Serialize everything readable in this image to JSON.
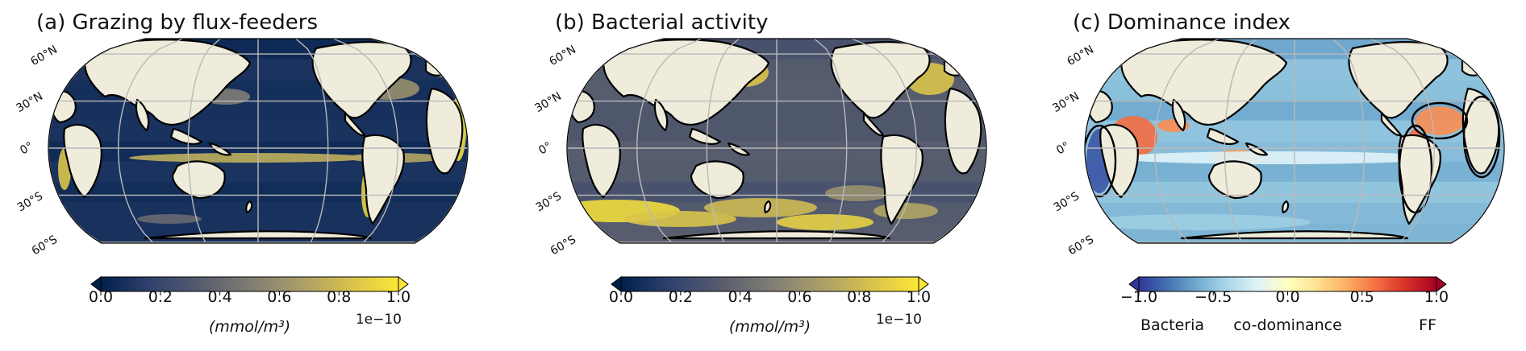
{
  "chart_data": [
    {
      "type": "heatmap",
      "id": "a",
      "title": "(a) Grazing by flux-feeders",
      "projection": "robinson world map",
      "lat_labels": [
        "60°N",
        "30°N",
        "0°",
        "30°S",
        "60°S"
      ],
      "colormap": "cividis",
      "colormap_stops": [
        "#00204c",
        "#30426d",
        "#575c6e",
        "#7f7c75",
        "#a89d6a",
        "#d6c04d",
        "#fde737"
      ],
      "colorbar": {
        "ticks": [
          "0.0",
          "0.2",
          "0.4",
          "0.6",
          "0.8",
          "1.0"
        ],
        "range": [
          0.0,
          1.0
        ],
        "scale_label": "1e−10",
        "units_label": "(mmol/m³)",
        "extend": "both"
      },
      "pattern": "low (dark blue) over most ocean; high (yellow) along coastal upwelling regions, equatorial Atlantic/Pacific and northern coasts"
    },
    {
      "type": "heatmap",
      "id": "b",
      "title": "(b) Bacterial activity",
      "projection": "robinson world map",
      "lat_labels": [
        "60°N",
        "30°N",
        "0°",
        "30°S",
        "60°S"
      ],
      "colormap": "cividis",
      "colormap_stops": [
        "#00204c",
        "#30426d",
        "#575c6e",
        "#7f7c75",
        "#a89d6a",
        "#d6c04d",
        "#fde737"
      ],
      "colorbar": {
        "ticks": [
          "0.0",
          "0.2",
          "0.4",
          "0.6",
          "0.8",
          "1.0"
        ],
        "range": [
          0.0,
          1.0
        ],
        "scale_label": "1e−10",
        "units_label": "(mmol/m³)",
        "extend": "both"
      },
      "pattern": "moderate grey over most ocean; high (yellow) bands in the Southern Ocean and North Pacific/Atlantic western boundary currents"
    },
    {
      "type": "heatmap",
      "id": "c",
      "title": "(c) Dominance index",
      "projection": "robinson world map",
      "lat_labels": [
        "60°N",
        "30°N",
        "0°",
        "30°S",
        "60°S"
      ],
      "colormap": "RdYlBu_r",
      "colormap_stops": [
        "#313695",
        "#4575b4",
        "#74add1",
        "#abd9e9",
        "#e0f3f8",
        "#ffffbf",
        "#fee090",
        "#fdae61",
        "#f46d43",
        "#d73027",
        "#a50026"
      ],
      "colorbar": {
        "ticks": [
          "−1.0",
          "−0.5",
          "0.0",
          "0.5",
          "1.0"
        ],
        "range": [
          -1.0,
          1.0
        ],
        "categories": [
          "Bacteria",
          "co-dominance",
          "FF"
        ],
        "extend": "both"
      },
      "pattern": "negative (blue, bacteria-dominated) over open ocean; positive (orange, flux-feeder-dominated) along coastal upwelling zones outlined by black contour"
    }
  ]
}
